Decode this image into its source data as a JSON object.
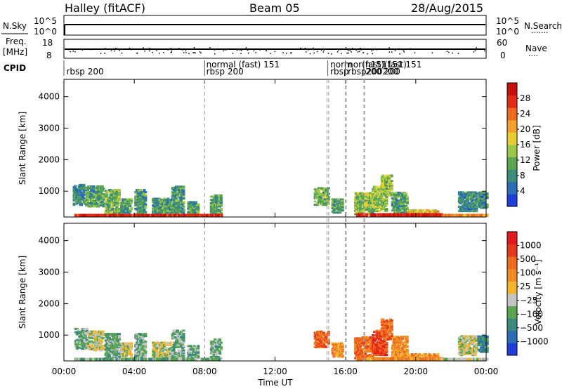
{
  "header": {
    "station": "Halley (fitACF)",
    "beam": "Beam 05",
    "date": "28/Aug/2015"
  },
  "top_panels": {
    "nsky": {
      "label": "N.Sky",
      "ticks": [
        "10^5",
        "10^0"
      ]
    },
    "nsearch": {
      "label": "N.Search",
      "dots": "·······",
      "ticks": [
        "10^5",
        "10^0"
      ]
    },
    "freq": {
      "label_line1": "Freq.",
      "label_line2": "[MHz]",
      "ticks": [
        "18",
        "8"
      ]
    },
    "nave": {
      "label": "Nave",
      "dots": "····",
      "ticks": [
        "60",
        "0"
      ]
    },
    "cpid": {
      "label": "CPID"
    }
  },
  "cpid_labels": [
    {
      "text": "rbsp 200",
      "hour": 0.1,
      "row": 1
    },
    {
      "text": "normal (fast)  151",
      "hour": 8.05,
      "row": 0
    },
    {
      "text": "rbsp 200",
      "hour": 8.05,
      "row": 1
    },
    {
      "text": "norm",
      "hour": 15.1,
      "row": 0
    },
    {
      "text": "rbsp",
      "hour": 15.1,
      "row": 1
    },
    {
      "text": "nor(fast)(fast)",
      "hour": 16.1,
      "row": 0
    },
    {
      "text": "rbsp200200",
      "hour": 16.1,
      "row": 1
    },
    {
      "text": "n151151 151",
      "hour": 17.1,
      "row": 0
    },
    {
      "text": "200 200",
      "hour": 17.1,
      "row": 1
    }
  ],
  "vertical_marks_hours": [
    8.0,
    14.95,
    15.05,
    16.0,
    16.05,
    17.05,
    17.1
  ],
  "power_colorbar": {
    "title": "Power [dB]",
    "ticks": [
      "4",
      "8",
      "12",
      "16",
      "20",
      "24",
      "28"
    ],
    "colors": [
      "#1f3fdc",
      "#2a6fb3",
      "#3b8b7a",
      "#5aa650",
      "#9bc84a",
      "#e8cf2f",
      "#f3a12a",
      "#ee6a1f",
      "#e42a15",
      "#c8100e"
    ]
  },
  "velocity_colorbar": {
    "title": "Velocity [m s⁻¹]",
    "ticks": [
      "1000",
      "500",
      "100",
      "25",
      "−25",
      "−100",
      "−500",
      "−1000"
    ],
    "colors": [
      "#1f3fdc",
      "#2a6fb3",
      "#3b8b7a",
      "#5aa650",
      "#c4c4c4",
      "#f3b52a",
      "#f08a25",
      "#ee6a1f",
      "#e6381a",
      "#e21a1a"
    ]
  },
  "chart_data": [
    {
      "type": "heatmap",
      "title": "",
      "ylabel": "Slant Range [km]",
      "xlabel": "",
      "x_unit": "hours UT",
      "xlim": [
        0,
        24
      ],
      "ylim": [
        180,
        4550
      ],
      "yticks": [
        "1000",
        "2000",
        "3000",
        "4000"
      ],
      "colorbar": "Power [dB]",
      "clim": [
        0,
        32
      ],
      "blobs": [
        {
          "h0": 0.5,
          "h1": 1.2,
          "r0": 600,
          "r1": 1250,
          "v": 8
        },
        {
          "h0": 1.2,
          "h1": 2.2,
          "r0": 550,
          "r1": 1200,
          "v": 10
        },
        {
          "h0": 2.3,
          "h1": 3.1,
          "r0": 300,
          "r1": 1100,
          "v": 12
        },
        {
          "h0": 3.2,
          "h1": 3.8,
          "r0": 350,
          "r1": 800,
          "v": 10
        },
        {
          "h0": 4.0,
          "h1": 4.6,
          "r0": 300,
          "r1": 1100,
          "v": 9
        },
        {
          "h0": 5.0,
          "h1": 6.0,
          "r0": 300,
          "r1": 800,
          "v": 10
        },
        {
          "h0": 6.1,
          "h1": 6.8,
          "r0": 300,
          "r1": 1200,
          "v": 9
        },
        {
          "h0": 7.0,
          "h1": 7.6,
          "r0": 300,
          "r1": 700,
          "v": 10
        },
        {
          "h0": 8.3,
          "h1": 8.9,
          "r0": 300,
          "r1": 900,
          "v": 11
        },
        {
          "h0": 14.2,
          "h1": 15.0,
          "r0": 600,
          "r1": 1150,
          "v": 12
        },
        {
          "h0": 15.2,
          "h1": 15.8,
          "r0": 350,
          "r1": 800,
          "v": 10
        },
        {
          "h0": 16.5,
          "h1": 17.5,
          "r0": 300,
          "r1": 1000,
          "v": 14
        },
        {
          "h0": 17.5,
          "h1": 18.3,
          "r0": 400,
          "r1": 1200,
          "v": 14
        },
        {
          "h0": 18.0,
          "h1": 18.6,
          "r0": 900,
          "r1": 1550,
          "v": 14
        },
        {
          "h0": 18.6,
          "h1": 19.5,
          "r0": 350,
          "r1": 1000,
          "v": 10
        },
        {
          "h0": 19.5,
          "h1": 21.2,
          "r0": 250,
          "r1": 450,
          "v": 18
        },
        {
          "h0": 22.4,
          "h1": 23.4,
          "r0": 400,
          "r1": 1000,
          "v": 8
        },
        {
          "h0": 23.5,
          "h1": 24.0,
          "r0": 500,
          "r1": 1000,
          "v": 7
        }
      ],
      "bands": [
        {
          "h0": 0.6,
          "h1": 8.9,
          "r0": 180,
          "r1": 280,
          "v": 28
        },
        {
          "h0": 16.6,
          "h1": 21.4,
          "r0": 180,
          "r1": 300,
          "v": 29
        },
        {
          "h0": 21.4,
          "h1": 24.0,
          "r0": 180,
          "r1": 280,
          "v": 22
        }
      ]
    },
    {
      "type": "heatmap",
      "title": "",
      "ylabel": "Slant Range [km]",
      "xlabel": "Time UT",
      "x_unit": "hours UT",
      "xlim": [
        0,
        24
      ],
      "ylim": [
        180,
        4550
      ],
      "xticks": [
        "00:00",
        "04:00",
        "08:00",
        "12:00",
        "16:00",
        "20:00",
        "00:00"
      ],
      "yticks": [
        "1000",
        "2000",
        "3000",
        "4000"
      ],
      "colorbar": "Velocity [m s⁻¹]",
      "clim": [
        -1000,
        1000
      ],
      "blobs": [
        {
          "h0": 0.6,
          "h1": 1.3,
          "r0": 600,
          "r1": 1250,
          "v": 3
        },
        {
          "h0": 1.3,
          "h1": 2.2,
          "r0": 550,
          "r1": 1150,
          "v": 4
        },
        {
          "h0": 2.3,
          "h1": 3.1,
          "r0": 300,
          "r1": 1100,
          "v": 3
        },
        {
          "h0": 3.2,
          "h1": 3.8,
          "r0": 350,
          "r1": 800,
          "v": 4
        },
        {
          "h0": 4.0,
          "h1": 4.6,
          "r0": 300,
          "r1": 1100,
          "v": 3
        },
        {
          "h0": 5.0,
          "h1": 6.0,
          "r0": 300,
          "r1": 800,
          "v": 4
        },
        {
          "h0": 6.1,
          "h1": 6.8,
          "r0": 300,
          "r1": 1200,
          "v": 3
        },
        {
          "h0": 7.0,
          "h1": 7.6,
          "r0": 300,
          "r1": 700,
          "v": 3
        },
        {
          "h0": 8.3,
          "h1": 8.9,
          "r0": 300,
          "r1": 900,
          "v": 3
        },
        {
          "h0": 14.2,
          "h1": 15.0,
          "r0": 650,
          "r1": 1150,
          "v": 7
        },
        {
          "h0": 15.2,
          "h1": 15.8,
          "r0": 350,
          "r1": 800,
          "v": 6
        },
        {
          "h0": 16.5,
          "h1": 17.5,
          "r0": 300,
          "r1": 1000,
          "v": 7
        },
        {
          "h0": 17.5,
          "h1": 18.3,
          "r0": 400,
          "r1": 1200,
          "v": 8
        },
        {
          "h0": 18.0,
          "h1": 18.6,
          "r0": 900,
          "r1": 1550,
          "v": 7
        },
        {
          "h0": 18.6,
          "h1": 19.5,
          "r0": 350,
          "r1": 1000,
          "v": 6
        },
        {
          "h0": 19.5,
          "h1": 21.2,
          "r0": 250,
          "r1": 450,
          "v": 6
        },
        {
          "h0": 22.4,
          "h1": 23.4,
          "r0": 400,
          "r1": 1000,
          "v": 4
        },
        {
          "h0": 23.5,
          "h1": 24.0,
          "r0": 500,
          "r1": 1000,
          "v": 2
        }
      ],
      "bands": [
        {
          "h0": 0.6,
          "h1": 8.9,
          "r0": 180,
          "r1": 280,
          "v": 3
        },
        {
          "h0": 16.6,
          "h1": 21.4,
          "r0": 180,
          "r1": 300,
          "v": 6
        },
        {
          "h0": 21.4,
          "h1": 24.0,
          "r0": 180,
          "r1": 280,
          "v": 4
        }
      ]
    }
  ]
}
